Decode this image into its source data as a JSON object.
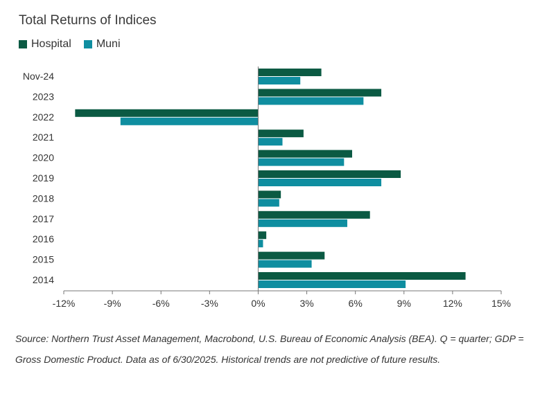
{
  "chart_data": {
    "type": "bar",
    "orientation": "horizontal",
    "title": "Total Returns of Indices",
    "categories": [
      "Nov-24",
      "2023",
      "2022",
      "2021",
      "2020",
      "2019",
      "2018",
      "2017",
      "2016",
      "2015",
      "2014"
    ],
    "series": [
      {
        "name": "Hospital",
        "color": "#0b5a43",
        "values": [
          3.9,
          7.6,
          -11.3,
          2.8,
          5.8,
          8.8,
          1.4,
          6.9,
          0.5,
          4.1,
          12.8
        ]
      },
      {
        "name": "Muni",
        "color": "#0f8ea0",
        "values": [
          2.6,
          6.5,
          -8.5,
          1.5,
          5.3,
          7.6,
          1.3,
          5.5,
          0.3,
          3.3,
          9.1
        ]
      }
    ],
    "xlim": [
      -12,
      15
    ],
    "xticks": [
      -12,
      -9,
      -6,
      -3,
      0,
      3,
      6,
      9,
      12,
      15
    ],
    "xtick_labels": [
      "-12%",
      "-9%",
      "-6%",
      "-3%",
      "0%",
      "3%",
      "6%",
      "9%",
      "12%",
      "15%"
    ],
    "legend_position": "top-left",
    "grid": false
  },
  "footnote": "Source: Northern Trust Asset Management, Macrobond, U.S. Bureau of Economic Analysis (BEA). Q = quarter; GDP = Gross Domestic Product. Data as of 6/30/2025. Historical trends are not predictive of future results."
}
